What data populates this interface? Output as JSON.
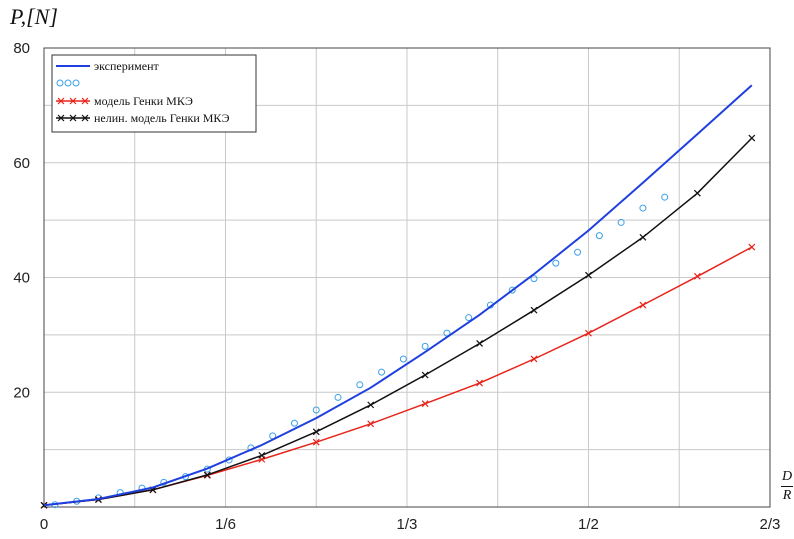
{
  "chart_data": {
    "type": "line",
    "ylabel": "P,[N]",
    "xlabel_num": "D",
    "xlabel_den": "R",
    "xlim": [
      0,
      0.6667
    ],
    "ylim": [
      0,
      80
    ],
    "x_ticks": [
      {
        "value": 0,
        "label": "0"
      },
      {
        "value": 0.16667,
        "label": "1/6"
      },
      {
        "value": 0.33333,
        "label": "1/3"
      },
      {
        "value": 0.5,
        "label": "1/2"
      },
      {
        "value": 0.66667,
        "label": "2/3"
      }
    ],
    "y_ticks": [
      {
        "value": 20,
        "label": "20"
      },
      {
        "value": 40,
        "label": "40"
      },
      {
        "value": 60,
        "label": "60"
      },
      {
        "value": 80,
        "label": "80"
      }
    ],
    "grid": true,
    "legend_position": "top-left",
    "legend": [
      {
        "label": "эксперимент",
        "color": "#1f3fe0",
        "kind": "line"
      },
      {
        "label": "",
        "color": "#3aa0e8",
        "kind": "circles"
      },
      {
        "label": "модель Генки МКЭ",
        "color": "#e8231a",
        "kind": "line-x"
      },
      {
        "label": "нелин. модель Генки МКЭ",
        "color": "#111111",
        "kind": "line-x"
      }
    ],
    "series": [
      {
        "name": "эксперимент",
        "color": "#1f3fe0",
        "style": "line",
        "x": [
          0,
          0.05,
          0.1,
          0.15,
          0.2,
          0.25,
          0.3,
          0.35,
          0.4,
          0.45,
          0.5,
          0.55,
          0.6,
          0.65
        ],
        "y": [
          0.3,
          1.4,
          3.4,
          6.7,
          10.8,
          15.5,
          20.8,
          27.0,
          33.5,
          40.6,
          48.2,
          56.5,
          65.0,
          73.5
        ]
      },
      {
        "name": "",
        "color": "#3aa0e8",
        "style": "scatter",
        "x": [
          0.01,
          0.03,
          0.05,
          0.07,
          0.09,
          0.11,
          0.13,
          0.15,
          0.17,
          0.19,
          0.21,
          0.23,
          0.25,
          0.27,
          0.29,
          0.31,
          0.33,
          0.35,
          0.37,
          0.39,
          0.41,
          0.43,
          0.45,
          0.47,
          0.49,
          0.51,
          0.53,
          0.55,
          0.57
        ],
        "y": [
          0.4,
          1.0,
          1.6,
          2.5,
          3.3,
          4.3,
          5.3,
          6.6,
          8.2,
          10.3,
          12.4,
          14.6,
          16.9,
          19.1,
          21.3,
          23.5,
          25.8,
          28.0,
          30.3,
          33.0,
          35.2,
          37.8,
          39.8,
          42.5,
          44.4,
          47.3,
          49.6,
          52.1,
          54.0
        ]
      },
      {
        "name": "модель Генки МКЭ",
        "color": "#e8231a",
        "style": "line-x",
        "x": [
          0,
          0.05,
          0.1,
          0.15,
          0.2,
          0.25,
          0.3,
          0.35,
          0.4,
          0.45,
          0.5,
          0.55,
          0.6,
          0.65
        ],
        "y": [
          0.3,
          1.3,
          3.0,
          5.5,
          8.3,
          11.3,
          14.5,
          18.0,
          21.6,
          25.8,
          30.3,
          35.2,
          40.2,
          45.3
        ]
      },
      {
        "name": "нелин. модель Генки МКЭ",
        "color": "#111111",
        "style": "line-x",
        "x": [
          0,
          0.05,
          0.1,
          0.15,
          0.2,
          0.25,
          0.3,
          0.35,
          0.4,
          0.45,
          0.5,
          0.55,
          0.6,
          0.65
        ],
        "y": [
          0.3,
          1.3,
          3.0,
          5.6,
          9.0,
          13.1,
          17.8,
          23.0,
          28.5,
          34.3,
          40.4,
          47.0,
          54.7,
          64.3
        ]
      }
    ]
  }
}
